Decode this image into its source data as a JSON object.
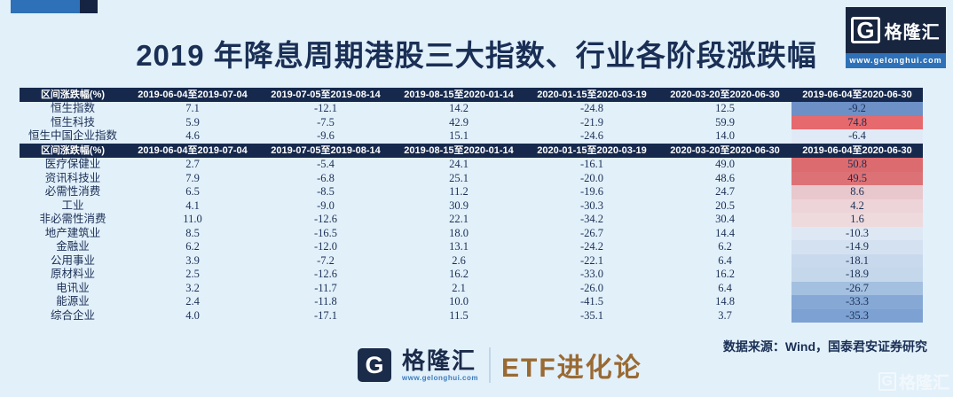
{
  "page": {
    "title": "2019 年降息周期港股三大指数、行业各阶段涨跌幅",
    "source_note": "数据来源：Wind，国泰君安证券研究"
  },
  "branding": {
    "logo_letter": "G",
    "logo_name": "格隆汇",
    "website": "www.gelonghui.com",
    "footer_brand": "ETF进化论",
    "watermark_letter": "G",
    "watermark_name": "格隆汇"
  },
  "colors": {
    "page_bg": "#e2f0fa",
    "header_bg": "#16294d",
    "accent_blue": "#2e71b8",
    "title_text": "#1a2f55",
    "positive_extreme": "#db6b6f",
    "negative_extreme": "#6d90c7",
    "etf_brand_text": "#9a6a33"
  },
  "tables": [
    {
      "columns": [
        "区间涨跌幅(%)",
        "2019-06-04至2019-07-04",
        "2019-07-05至2019-08-14",
        "2019-08-15至2020-01-14",
        "2020-01-15至2020-03-19",
        "2020-03-20至2020-06-30",
        "2019-06-04至2020-06-30"
      ],
      "rows": [
        {
          "label": "恒生指数",
          "values": [
            "7.1",
            "-12.1",
            "14.2",
            "-24.8",
            "12.5",
            "-9.2"
          ],
          "highlight": "#6d90c7"
        },
        {
          "label": "恒生科技",
          "values": [
            "5.9",
            "-7.5",
            "42.9",
            "-21.9",
            "59.9",
            "74.8"
          ],
          "highlight": "#e5696d"
        },
        {
          "label": "恒生中国企业指数",
          "values": [
            "4.6",
            "-9.6",
            "15.1",
            "-24.6",
            "14.0",
            "-6.4"
          ],
          "highlight": "#dfeaf6"
        }
      ]
    },
    {
      "columns": [
        "区间涨跌幅(%)",
        "2019-06-04至2019-07-04",
        "2019-07-05至2019-08-14",
        "2019-08-15至2020-01-14",
        "2020-01-15至2020-03-19",
        "2020-03-20至2020-06-30",
        "2019-06-04至2020-06-30"
      ],
      "rows": [
        {
          "label": "医疗保健业",
          "values": [
            "2.7",
            "-5.4",
            "24.1",
            "-16.1",
            "49.0",
            "50.8"
          ],
          "highlight": "#db6b6f"
        },
        {
          "label": "资讯科技业",
          "values": [
            "7.9",
            "-6.8",
            "25.1",
            "-20.0",
            "48.6",
            "49.5"
          ],
          "highlight": "#dc7276"
        },
        {
          "label": "必需性消费",
          "values": [
            "6.5",
            "-8.5",
            "11.2",
            "-19.6",
            "24.7",
            "8.6"
          ],
          "highlight": "#e9c8cd"
        },
        {
          "label": "工业",
          "values": [
            "4.1",
            "-9.0",
            "30.9",
            "-30.3",
            "20.5",
            "4.2"
          ],
          "highlight": "#edd4d8"
        },
        {
          "label": "非必需性消费",
          "values": [
            "11.0",
            "-12.6",
            "22.1",
            "-34.2",
            "30.4",
            "1.6"
          ],
          "highlight": "#eedadd"
        },
        {
          "label": "地产建筑业",
          "values": [
            "8.5",
            "-16.5",
            "18.0",
            "-26.7",
            "14.4",
            "-10.3"
          ],
          "highlight": "#dde8f4"
        },
        {
          "label": "金融业",
          "values": [
            "6.2",
            "-12.0",
            "13.1",
            "-24.2",
            "6.2",
            "-14.9"
          ],
          "highlight": "#d4e1f0"
        },
        {
          "label": "公用事业",
          "values": [
            "3.9",
            "-7.2",
            "2.6",
            "-22.1",
            "6.4",
            "-18.1"
          ],
          "highlight": "#c9d9ed"
        },
        {
          "label": "原材料业",
          "values": [
            "2.5",
            "-12.6",
            "16.2",
            "-33.0",
            "16.2",
            "-18.9"
          ],
          "highlight": "#c5d7eb"
        },
        {
          "label": "电讯业",
          "values": [
            "3.2",
            "-11.7",
            "2.1",
            "-26.0",
            "6.4",
            "-26.7"
          ],
          "highlight": "#a4c0e0"
        },
        {
          "label": "能源业",
          "values": [
            "2.4",
            "-11.8",
            "10.0",
            "-41.5",
            "14.8",
            "-33.3"
          ],
          "highlight": "#85a8d5"
        },
        {
          "label": "综合企业",
          "values": [
            "4.0",
            "-17.1",
            "11.5",
            "-35.1",
            "3.7",
            "-35.3"
          ],
          "highlight": "#7ca1d2"
        }
      ]
    }
  ],
  "chart_data": [
    {
      "type": "table",
      "title": "2019 年降息周期港股三大指数、行业各阶段涨跌幅",
      "categories": [
        "2019-06-04至2019-07-04",
        "2019-07-05至2019-08-14",
        "2019-08-15至2020-01-14",
        "2020-01-15至2020-03-19",
        "2020-03-20至2020-06-30",
        "2019-06-04至2020-06-30"
      ],
      "series": [
        {
          "name": "恒生指数",
          "values": [
            7.1,
            -12.1,
            14.2,
            -24.8,
            12.5,
            -9.2
          ]
        },
        {
          "name": "恒生科技",
          "values": [
            5.9,
            -7.5,
            42.9,
            -21.9,
            59.9,
            74.8
          ]
        },
        {
          "name": "恒生中国企业指数",
          "values": [
            4.6,
            -9.6,
            15.1,
            -24.6,
            14.0,
            -6.4
          ]
        }
      ],
      "ylabel": "区间涨跌幅(%)"
    },
    {
      "type": "table",
      "categories": [
        "2019-06-04至2019-07-04",
        "2019-07-05至2019-08-14",
        "2019-08-15至2020-01-14",
        "2020-01-15至2020-03-19",
        "2020-03-20至2020-06-30",
        "2019-06-04至2020-06-30"
      ],
      "series": [
        {
          "name": "医疗保健业",
          "values": [
            2.7,
            -5.4,
            24.1,
            -16.1,
            49.0,
            50.8
          ]
        },
        {
          "name": "资讯科技业",
          "values": [
            7.9,
            -6.8,
            25.1,
            -20.0,
            48.6,
            49.5
          ]
        },
        {
          "name": "必需性消费",
          "values": [
            6.5,
            -8.5,
            11.2,
            -19.6,
            24.7,
            8.6
          ]
        },
        {
          "name": "工业",
          "values": [
            4.1,
            -9.0,
            30.9,
            -30.3,
            20.5,
            4.2
          ]
        },
        {
          "name": "非必需性消费",
          "values": [
            11.0,
            -12.6,
            22.1,
            -34.2,
            30.4,
            1.6
          ]
        },
        {
          "name": "地产建筑业",
          "values": [
            8.5,
            -16.5,
            18.0,
            -26.7,
            14.4,
            -10.3
          ]
        },
        {
          "name": "金融业",
          "values": [
            6.2,
            -12.0,
            13.1,
            -24.2,
            6.2,
            -14.9
          ]
        },
        {
          "name": "公用事业",
          "values": [
            3.9,
            -7.2,
            2.6,
            -22.1,
            6.4,
            -18.1
          ]
        },
        {
          "name": "原材料业",
          "values": [
            2.5,
            -12.6,
            16.2,
            -33.0,
            16.2,
            -18.9
          ]
        },
        {
          "name": "电讯业",
          "values": [
            3.2,
            -11.7,
            2.1,
            -26.0,
            6.4,
            -26.7
          ]
        },
        {
          "name": "能源业",
          "values": [
            2.4,
            -11.8,
            10.0,
            -41.5,
            14.8,
            -33.3
          ]
        },
        {
          "name": "综合企业",
          "values": [
            4.0,
            -17.1,
            11.5,
            -35.1,
            3.7,
            -35.3
          ]
        }
      ],
      "ylabel": "区间涨跌幅(%)"
    }
  ]
}
